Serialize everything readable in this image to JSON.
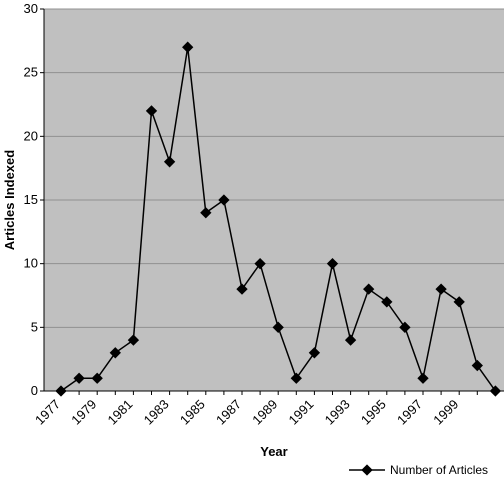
{
  "chart_data": {
    "type": "line",
    "title": "",
    "xlabel": "Year",
    "ylabel": "Articles Indexed",
    "ylim": [
      0,
      30
    ],
    "yticks": [
      "0",
      "5",
      "10",
      "15",
      "20",
      "25",
      "30"
    ],
    "xticks": [
      "1977",
      "1979",
      "1981",
      "1983",
      "1985",
      "1987",
      "1989",
      "1991",
      "1993",
      "1995",
      "1997",
      "1999"
    ],
    "x": [
      1977,
      1978,
      1979,
      1980,
      1981,
      1982,
      1983,
      1984,
      1985,
      1986,
      1987,
      1988,
      1989,
      1990,
      1991,
      1992,
      1993,
      1994,
      1995,
      1996,
      1997,
      1998,
      1999,
      2000,
      2001
    ],
    "series": [
      {
        "name": "Number of Articles",
        "values": [
          0,
          1,
          1,
          3,
          4,
          22,
          18,
          27,
          14,
          15,
          8,
          10,
          5,
          1,
          3,
          10,
          4,
          8,
          7,
          5,
          1,
          8,
          7,
          2,
          0
        ],
        "color": "#000000"
      }
    ],
    "grid": true,
    "plot_background": "#c0c0c0",
    "legend": "bottom-right"
  }
}
